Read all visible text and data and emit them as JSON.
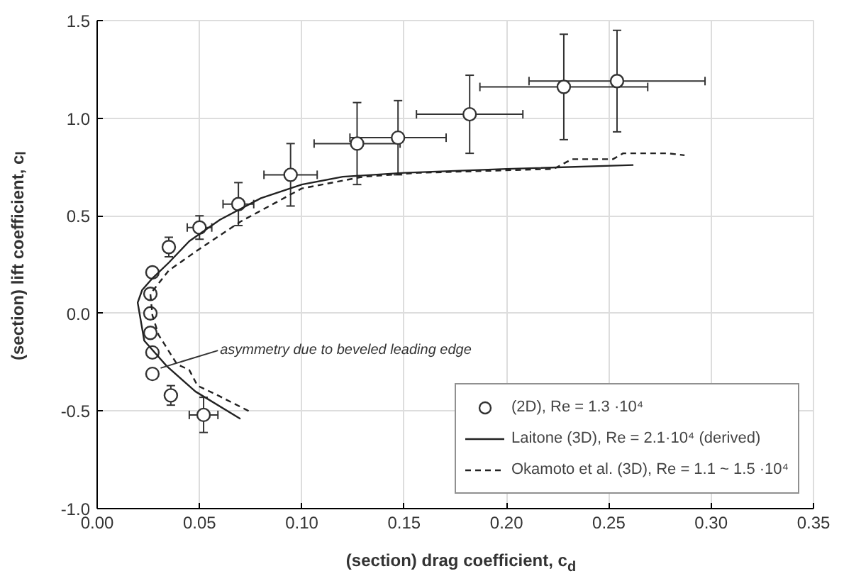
{
  "chart_data": {
    "type": "scatter",
    "xlabel": "(section) drag coefficient, c$_{d}$",
    "ylabel": "(section) lift coefficient, c$_{l}$",
    "xlim": [
      0,
      0.35
    ],
    "ylim": [
      -1.0,
      1.5
    ],
    "xticks": [
      {
        "value": 0,
        "label": "0.00"
      },
      0.05,
      {
        "value": 0.1,
        "label": "0.10"
      },
      0.15,
      {
        "value": 0.2,
        "label": "0.20"
      },
      0.25,
      {
        "value": 0.3,
        "label": "0.30"
      },
      0.35
    ],
    "yticks": [
      {
        "value": -1,
        "label": "-1.0"
      },
      -0.5,
      {
        "value": 0,
        "label": "0.0"
      },
      0.5,
      {
        "value": 1,
        "label": "1.0"
      },
      1.5
    ],
    "grid": true,
    "legend": "bottom right",
    "series": [
      {
        "name": "(2D), Re = 1.3 ·10⁴",
        "type": "scatter",
        "marker": "circle",
        "color": "#333333",
        "x": [
          0.027,
          0.035,
          0.05,
          0.069,
          0.0945,
          0.127,
          0.147,
          0.182,
          0.228,
          0.254,
          0.026,
          0.026,
          0.026,
          0.027,
          0.027,
          0.036,
          0.052
        ],
        "values": [
          0.21,
          0.34,
          0.44,
          0.56,
          0.71,
          0.87,
          0.9,
          1.02,
          1.16,
          1.19,
          0.1,
          0.0,
          -0.1,
          -0.2,
          -0.31,
          -0.42,
          -0.52
        ],
        "errors": [
          null,
          0.05,
          0.06,
          0.11,
          0.16,
          0.21,
          0.19,
          0.2,
          0.27,
          0.26,
          null,
          null,
          null,
          null,
          null,
          0.05,
          0.09
        ],
        "xerrors": [
          null,
          null,
          0.006,
          0.0075,
          0.013,
          0.021,
          0.0235,
          0.026,
          0.041,
          0.043,
          null,
          null,
          null,
          null,
          null,
          0.002,
          0.007
        ]
      },
      {
        "name": "Laitone (3D), Re = 2.1·10⁴ (derived)",
        "type": "line",
        "line_style": "solid",
        "color": "#222222",
        "x": [
          0.07,
          0.048,
          0.034,
          0.023,
          0.0198,
          0.022,
          0.027,
          0.035,
          0.045,
          0.06,
          0.08,
          0.1,
          0.12,
          0.15,
          0.2,
          0.262
        ],
        "values": [
          -0.54,
          -0.4,
          -0.27,
          -0.14,
          0.055,
          0.12,
          0.18,
          0.26,
          0.37,
          0.48,
          0.59,
          0.66,
          0.7,
          0.72,
          0.74,
          0.76
        ]
      },
      {
        "name": "Okamoto et al. (3D), Re = 1.1 ~ 1.5 ·10⁴",
        "type": "line",
        "line_style": "dashed",
        "color": "#222222",
        "x": [
          0.074,
          0.059,
          0.049,
          0.045,
          0.039,
          0.03,
          0.027,
          0.026,
          0.035,
          0.05,
          0.07,
          0.1,
          0.13,
          0.157,
          0.223,
          0.232,
          0.252,
          0.257,
          0.279,
          0.287
        ],
        "values": [
          -0.5,
          -0.42,
          -0.37,
          -0.29,
          -0.26,
          -0.11,
          -0.01,
          0.1,
          0.22,
          0.33,
          0.47,
          0.64,
          0.7,
          0.72,
          0.74,
          0.79,
          0.79,
          0.82,
          0.82,
          0.81
        ]
      }
    ],
    "annotations": [
      {
        "text": "asymmetry due to beveled leading edge",
        "x": 0.031,
        "y": -0.28
      }
    ]
  }
}
